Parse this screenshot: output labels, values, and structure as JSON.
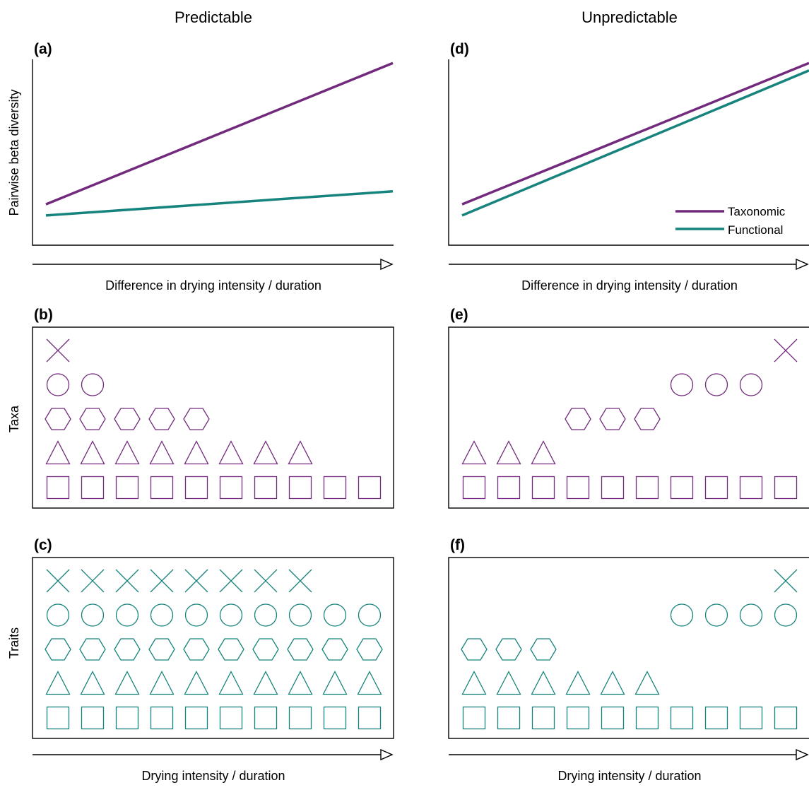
{
  "colors": {
    "taxonomic": "#722a7c",
    "functional": "#16837d"
  },
  "columns": [
    {
      "header": "Predictable"
    },
    {
      "header": "Unpredictable"
    }
  ],
  "rows": {
    "beta": {
      "ylabel": "Pairwise beta diversity",
      "xlabel": "Difference in drying intensity / duration"
    },
    "taxa": {
      "ylabel": "Taxa"
    },
    "traits": {
      "ylabel": "Traits",
      "xlabel": "Drying intensity / duration"
    }
  },
  "legend": [
    {
      "label": "Taxonomic",
      "color": "#722a7c"
    },
    {
      "label": "Functional",
      "color": "#16837d"
    }
  ],
  "panels": {
    "a": {
      "tag": "(a)",
      "series": [
        {
          "name": "Taxonomic",
          "color": "#722a7c",
          "start": 0.22,
          "end": 0.98
        },
        {
          "name": "Functional",
          "color": "#16837d",
          "start": 0.16,
          "end": 0.29
        }
      ]
    },
    "d": {
      "tag": "(d)",
      "series": [
        {
          "name": "Taxonomic",
          "color": "#722a7c",
          "start": 0.22,
          "end": 0.98
        },
        {
          "name": "Functional",
          "color": "#16837d",
          "start": 0.16,
          "end": 0.94
        }
      ]
    },
    "b": {
      "tag": "(b)",
      "color": "#722a7c",
      "rows": [
        {
          "shape": "cross",
          "slots": [
            0
          ]
        },
        {
          "shape": "circle",
          "slots": [
            0,
            1
          ]
        },
        {
          "shape": "hexagon",
          "slots": [
            0,
            1,
            2,
            3,
            4
          ]
        },
        {
          "shape": "triangle",
          "slots": [
            0,
            1,
            2,
            3,
            4,
            5,
            6,
            7
          ]
        },
        {
          "shape": "square",
          "slots": [
            0,
            1,
            2,
            3,
            4,
            5,
            6,
            7,
            8,
            9
          ]
        }
      ]
    },
    "e": {
      "tag": "(e)",
      "color": "#722a7c",
      "rows": [
        {
          "shape": "cross",
          "slots": [
            9
          ]
        },
        {
          "shape": "circle",
          "slots": [
            6,
            7,
            8
          ]
        },
        {
          "shape": "hexagon",
          "slots": [
            3,
            4,
            5
          ]
        },
        {
          "shape": "triangle",
          "slots": [
            0,
            1,
            2
          ]
        },
        {
          "shape": "square",
          "slots": [
            0,
            1,
            2,
            3,
            4,
            5,
            6,
            7,
            8,
            9
          ]
        }
      ]
    },
    "c": {
      "tag": "(c)",
      "color": "#16837d",
      "rows": [
        {
          "shape": "cross",
          "slots": [
            0,
            1,
            2,
            3,
            4,
            5,
            6,
            7
          ]
        },
        {
          "shape": "circle",
          "slots": [
            0,
            1,
            2,
            3,
            4,
            5,
            6,
            7,
            8,
            9
          ]
        },
        {
          "shape": "hexagon",
          "slots": [
            0,
            1,
            2,
            3,
            4,
            5,
            6,
            7,
            8,
            9
          ]
        },
        {
          "shape": "triangle",
          "slots": [
            0,
            1,
            2,
            3,
            4,
            5,
            6,
            7,
            8,
            9
          ]
        },
        {
          "shape": "square",
          "slots": [
            0,
            1,
            2,
            3,
            4,
            5,
            6,
            7,
            8,
            9
          ]
        }
      ]
    },
    "f": {
      "tag": "(f)",
      "color": "#16837d",
      "rows": [
        {
          "shape": "cross",
          "slots": [
            9
          ]
        },
        {
          "shape": "circle",
          "slots": [
            6,
            7,
            8,
            9
          ]
        },
        {
          "shape": "hexagon",
          "slots": [
            0,
            1,
            2
          ]
        },
        {
          "shape": "triangle",
          "slots": [
            0,
            1,
            2,
            3,
            4,
            5
          ]
        },
        {
          "shape": "square",
          "slots": [
            0,
            1,
            2,
            3,
            4,
            5,
            6,
            7,
            8,
            9
          ]
        }
      ]
    }
  }
}
